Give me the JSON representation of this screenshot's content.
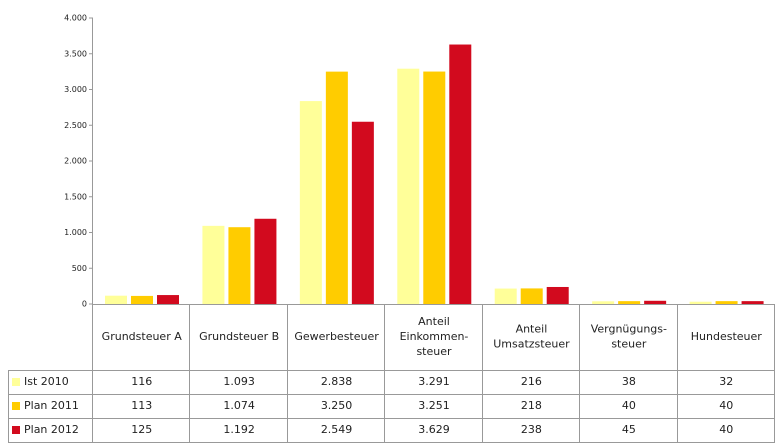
{
  "chart_data": {
    "type": "bar",
    "categories": [
      "Grundsteuer A",
      "Grundsteuer B",
      "Gewerbesteuer",
      "Anteil\nEinkommen-\nsteuer",
      "Anteil\nUmsatzsteuer",
      "Vergnügungs-\nsteuer",
      "Hundesteuer"
    ],
    "series": [
      {
        "name": "Ist 2010",
        "color": "#ffff99",
        "values": [
          116,
          1093,
          2838,
          3291,
          216,
          38,
          32
        ],
        "value_labels": [
          "116",
          "1.093",
          "2.838",
          "3.291",
          "216",
          "38",
          "32"
        ]
      },
      {
        "name": "Plan 2011",
        "color": "#ffcc00",
        "values": [
          113,
          1074,
          3250,
          3251,
          218,
          40,
          40
        ],
        "value_labels": [
          "113",
          "1.074",
          "3.250",
          "3.251",
          "218",
          "40",
          "40"
        ]
      },
      {
        "name": "Plan 2012",
        "color": "#d20a1e",
        "values": [
          125,
          1192,
          2549,
          3629,
          238,
          45,
          40
        ],
        "value_labels": [
          "125",
          "1.192",
          "2.549",
          "3.629",
          "238",
          "45",
          "40"
        ]
      }
    ],
    "ylim": [
      0,
      4000
    ],
    "yticks": [
      0,
      500,
      {
        "value": 1000,
        "label": "1.000"
      },
      {
        "value": 1500,
        "label": "1.500"
      },
      {
        "value": 2000,
        "label": "2.000"
      },
      {
        "value": 2500,
        "label": "2.500"
      },
      {
        "value": 3000,
        "label": "3.000"
      },
      {
        "value": 3500,
        "label": "3.500"
      },
      {
        "value": 4000,
        "label": "4.000"
      }
    ],
    "grid": false
  }
}
